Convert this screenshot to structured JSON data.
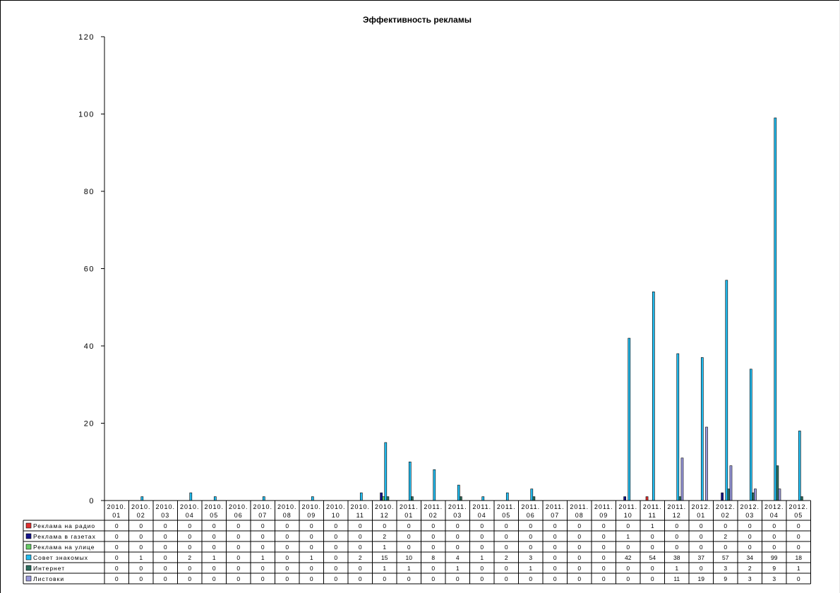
{
  "chart_data": {
    "type": "bar",
    "title": "Эффективность рекламы",
    "xlabel": "",
    "ylabel": "",
    "ylim": [
      0,
      120
    ],
    "yticks": [
      0,
      20,
      40,
      60,
      80,
      100,
      120
    ],
    "grid": false,
    "legend": "data-table",
    "categories": [
      [
        "2010.",
        "01"
      ],
      [
        "2010.",
        "02"
      ],
      [
        "2010.",
        "03"
      ],
      [
        "2010.",
        "04"
      ],
      [
        "2010.",
        "05"
      ],
      [
        "2010.",
        "06"
      ],
      [
        "2010.",
        "07"
      ],
      [
        "2010.",
        "08"
      ],
      [
        "2010.",
        "09"
      ],
      [
        "2010.",
        "10"
      ],
      [
        "2010.",
        "11"
      ],
      [
        "2010.",
        "12"
      ],
      [
        "2011.",
        "01"
      ],
      [
        "2011.",
        "02"
      ],
      [
        "2011.",
        "03"
      ],
      [
        "2011.",
        "04"
      ],
      [
        "2011.",
        "05"
      ],
      [
        "2011.",
        "06"
      ],
      [
        "2011.",
        "07"
      ],
      [
        "2011.",
        "08"
      ],
      [
        "2011.",
        "09"
      ],
      [
        "2011.",
        "10"
      ],
      [
        "2011.",
        "11"
      ],
      [
        "2011.",
        "12"
      ],
      [
        "2012.",
        "01"
      ],
      [
        "2012.",
        "02"
      ],
      [
        "2012.",
        "03"
      ],
      [
        "2012.",
        "04"
      ],
      [
        "2012.",
        "05"
      ]
    ],
    "series": [
      {
        "name": "Реклама на радио",
        "color": "#e03030",
        "values": [
          0,
          0,
          0,
          0,
          0,
          0,
          0,
          0,
          0,
          0,
          0,
          0,
          0,
          0,
          0,
          0,
          0,
          0,
          0,
          0,
          0,
          0,
          1,
          0,
          0,
          0,
          0,
          0,
          0
        ]
      },
      {
        "name": "Реклама в газетах",
        "color": "#14148c",
        "values": [
          0,
          0,
          0,
          0,
          0,
          0,
          0,
          0,
          0,
          0,
          0,
          2,
          0,
          0,
          0,
          0,
          0,
          0,
          0,
          0,
          0,
          1,
          0,
          0,
          0,
          2,
          0,
          0,
          0
        ]
      },
      {
        "name": "Реклама на улице",
        "color": "#66cc66",
        "values": [
          0,
          0,
          0,
          0,
          0,
          0,
          0,
          0,
          0,
          0,
          0,
          1,
          0,
          0,
          0,
          0,
          0,
          0,
          0,
          0,
          0,
          0,
          0,
          0,
          0,
          0,
          0,
          0,
          0
        ]
      },
      {
        "name": "Совет знакомых",
        "color": "#22bbee",
        "values": [
          0,
          1,
          0,
          2,
          1,
          0,
          1,
          0,
          1,
          0,
          2,
          15,
          10,
          8,
          4,
          1,
          2,
          3,
          0,
          0,
          0,
          42,
          54,
          38,
          37,
          57,
          34,
          99,
          18
        ]
      },
      {
        "name": "Интернет",
        "color": "#2e6e5e",
        "values": [
          0,
          0,
          0,
          0,
          0,
          0,
          0,
          0,
          0,
          0,
          0,
          1,
          1,
          0,
          1,
          0,
          0,
          1,
          0,
          0,
          0,
          0,
          0,
          1,
          0,
          3,
          2,
          9,
          1
        ]
      },
      {
        "name": "Листовки",
        "color": "#9999dd",
        "values": [
          0,
          0,
          0,
          0,
          0,
          0,
          0,
          0,
          0,
          0,
          0,
          0,
          0,
          0,
          0,
          0,
          0,
          0,
          0,
          0,
          0,
          0,
          0,
          11,
          19,
          9,
          3,
          3,
          0
        ]
      }
    ]
  }
}
